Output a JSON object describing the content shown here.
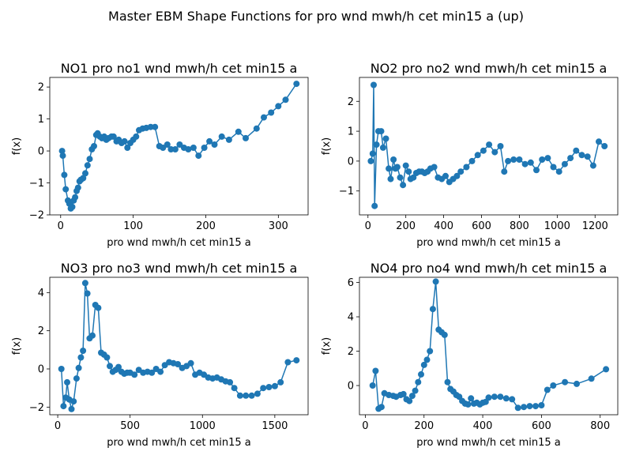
{
  "figure": {
    "title": "Master EBM Shape Functions for pro  wnd mwh/h cet min15 a (up)"
  },
  "colors": {
    "series": "#1f77b4",
    "axes": "#000000"
  },
  "chart_data": [
    {
      "type": "line",
      "title": "NO1 pro no1 wnd mwh/h cet min15 a",
      "xlabel": "pro  wnd mwh/h cet min15 a",
      "ylabel": "f(x)",
      "xlim": [
        -15,
        341
      ],
      "ylim": [
        -2.0,
        2.3
      ],
      "xticks": [
        0,
        100,
        200,
        300
      ],
      "yticks": [
        -2,
        -1,
        0,
        1,
        2
      ],
      "x": [
        2,
        3,
        5,
        7,
        10,
        12,
        14,
        16,
        18,
        20,
        22,
        24,
        26,
        28,
        31,
        34,
        37,
        40,
        43,
        46,
        49,
        51,
        54,
        57,
        60,
        63,
        66,
        70,
        73,
        77,
        80,
        84,
        88,
        92,
        96,
        100,
        104,
        108,
        113,
        118,
        124,
        130,
        136,
        141,
        147,
        152,
        158,
        164,
        170,
        176,
        183,
        190,
        198,
        205,
        212,
        222,
        232,
        245,
        255,
        270,
        280,
        290,
        300,
        310,
        325
      ],
      "values": [
        0.0,
        -0.15,
        -0.75,
        -1.2,
        -1.55,
        -1.65,
        -1.8,
        -1.75,
        -1.55,
        -1.45,
        -1.25,
        -1.15,
        -0.95,
        -0.9,
        -0.85,
        -0.7,
        -0.45,
        -0.25,
        0.05,
        0.15,
        0.5,
        0.55,
        0.45,
        0.4,
        0.45,
        0.35,
        0.4,
        0.45,
        0.45,
        0.3,
        0.35,
        0.25,
        0.3,
        0.1,
        0.25,
        0.35,
        0.45,
        0.65,
        0.7,
        0.72,
        0.75,
        0.75,
        0.15,
        0.1,
        0.2,
        0.05,
        0.05,
        0.2,
        0.1,
        0.05,
        0.1,
        -0.15,
        0.1,
        0.3,
        0.2,
        0.45,
        0.35,
        0.6,
        0.4,
        0.7,
        1.05,
        1.2,
        1.4,
        1.6,
        2.1
      ]
    },
    {
      "type": "line",
      "title": "NO2 pro no2 wnd mwh/h cet min15 a",
      "xlabel": "pro  wnd mwh/h cet min15 a",
      "ylabel": "f(x)",
      "xlim": [
        -45,
        1320
      ],
      "ylim": [
        -1.8,
        2.8
      ],
      "xticks": [
        0,
        200,
        400,
        600,
        800,
        1000,
        1200
      ],
      "yticks": [
        -1,
        0,
        1,
        2
      ],
      "x": [
        15,
        25,
        30,
        35,
        45,
        55,
        70,
        80,
        95,
        110,
        120,
        135,
        145,
        155,
        170,
        185,
        200,
        215,
        225,
        240,
        255,
        270,
        285,
        300,
        315,
        330,
        350,
        370,
        390,
        410,
        430,
        450,
        470,
        490,
        520,
        550,
        580,
        610,
        640,
        670,
        700,
        720,
        740,
        770,
        800,
        830,
        860,
        890,
        920,
        950,
        980,
        1010,
        1040,
        1070,
        1100,
        1130,
        1160,
        1190,
        1220,
        1250
      ],
      "values": [
        0.0,
        0.25,
        2.55,
        -1.5,
        0.55,
        1.0,
        1.0,
        0.45,
        0.75,
        -0.25,
        -0.6,
        0.05,
        -0.25,
        -0.2,
        -0.55,
        -0.8,
        -0.15,
        -0.35,
        -0.6,
        -0.55,
        -0.4,
        -0.35,
        -0.35,
        -0.4,
        -0.35,
        -0.25,
        -0.2,
        -0.55,
        -0.6,
        -0.5,
        -0.7,
        -0.6,
        -0.5,
        -0.35,
        -0.2,
        0.0,
        0.2,
        0.35,
        0.55,
        0.3,
        0.5,
        -0.35,
        0.0,
        0.05,
        0.05,
        -0.1,
        -0.05,
        -0.3,
        0.05,
        0.1,
        -0.2,
        -0.35,
        -0.1,
        0.1,
        0.35,
        0.2,
        0.15,
        -0.15,
        0.65,
        0.5
      ]
    },
    {
      "type": "line",
      "title": "NO3 pro no3 wnd mwh/h cet min15 a",
      "xlabel": "pro  wnd mwh/h cet min15 a",
      "ylabel": "f(x)",
      "xlim": [
        -55,
        1730
      ],
      "ylim": [
        -2.4,
        4.8
      ],
      "xticks": [
        0,
        500,
        1000,
        1500
      ],
      "yticks": [
        -2,
        0,
        2,
        4
      ],
      "x": [
        25,
        40,
        55,
        65,
        80,
        95,
        110,
        130,
        145,
        160,
        175,
        190,
        205,
        220,
        240,
        260,
        280,
        300,
        320,
        340,
        360,
        380,
        400,
        420,
        440,
        460,
        480,
        500,
        530,
        560,
        590,
        620,
        650,
        680,
        710,
        740,
        770,
        800,
        830,
        860,
        890,
        920,
        950,
        980,
        1010,
        1040,
        1070,
        1100,
        1130,
        1160,
        1190,
        1220,
        1260,
        1300,
        1340,
        1380,
        1420,
        1460,
        1500,
        1540,
        1590,
        1650
      ],
      "values": [
        0.0,
        -1.95,
        -1.5,
        -0.7,
        -1.6,
        -2.1,
        -1.7,
        -0.5,
        0.05,
        0.6,
        0.95,
        4.5,
        3.95,
        1.6,
        1.75,
        3.35,
        3.2,
        0.85,
        0.75,
        0.6,
        0.15,
        -0.15,
        -0.05,
        0.1,
        -0.15,
        -0.25,
        -0.2,
        -0.2,
        -0.3,
        -0.05,
        -0.2,
        -0.15,
        -0.2,
        0.0,
        -0.15,
        0.2,
        0.35,
        0.3,
        0.25,
        0.05,
        0.15,
        0.3,
        -0.3,
        -0.2,
        -0.3,
        -0.45,
        -0.5,
        -0.45,
        -0.55,
        -0.65,
        -0.7,
        -1.0,
        -1.4,
        -1.4,
        -1.4,
        -1.3,
        -1.0,
        -0.95,
        -0.9,
        -0.7,
        0.35,
        0.45
      ]
    },
    {
      "type": "line",
      "title": "NO4 pro no4 wnd mwh/h cet min15 a",
      "xlabel": "pro  wnd mwh/h cet min15 a",
      "ylabel": "f(x)",
      "xlim": [
        -20,
        860
      ],
      "ylim": [
        -1.7,
        6.3
      ],
      "xticks": [
        0,
        200,
        400,
        600,
        800
      ],
      "yticks": [
        0,
        2,
        4,
        6
      ],
      "x": [
        25,
        35,
        45,
        55,
        65,
        80,
        95,
        105,
        120,
        130,
        140,
        150,
        160,
        170,
        180,
        190,
        200,
        210,
        220,
        230,
        240,
        250,
        260,
        270,
        280,
        290,
        300,
        310,
        320,
        330,
        340,
        350,
        360,
        370,
        380,
        390,
        400,
        410,
        420,
        440,
        460,
        480,
        500,
        520,
        540,
        560,
        580,
        600,
        620,
        640,
        680,
        720,
        770,
        820
      ],
      "values": [
        0.0,
        0.85,
        -1.35,
        -1.25,
        -0.45,
        -0.55,
        -0.6,
        -0.65,
        -0.55,
        -0.5,
        -0.8,
        -0.9,
        -0.6,
        -0.3,
        0.2,
        0.65,
        1.2,
        1.5,
        2.0,
        4.45,
        6.05,
        3.25,
        3.1,
        2.95,
        0.2,
        -0.2,
        -0.35,
        -0.55,
        -0.65,
        -0.9,
        -1.05,
        -1.1,
        -0.75,
        -1.05,
        -1.0,
        -1.1,
        -1.0,
        -0.95,
        -0.7,
        -0.65,
        -0.65,
        -0.75,
        -0.8,
        -1.3,
        -1.25,
        -1.2,
        -1.2,
        -1.15,
        -0.25,
        0.0,
        0.2,
        0.1,
        0.4,
        0.95
      ]
    }
  ]
}
